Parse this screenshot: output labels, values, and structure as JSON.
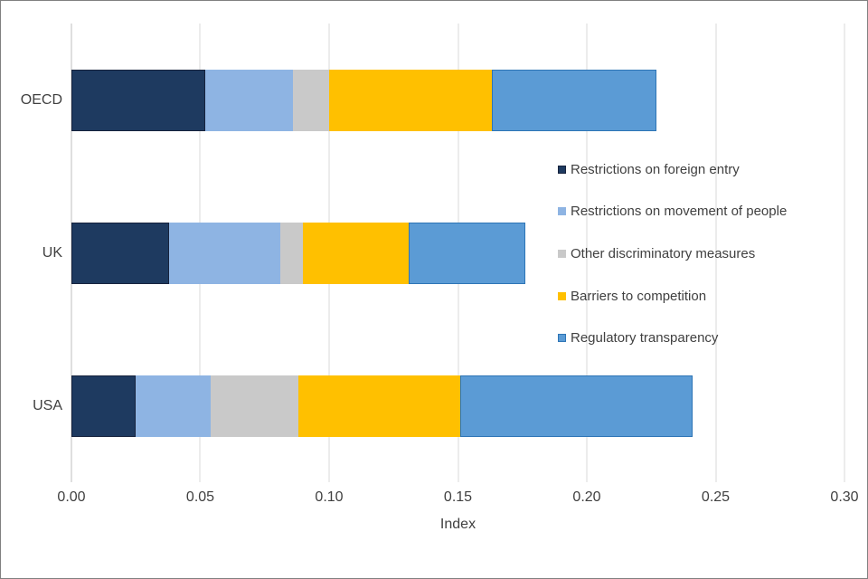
{
  "chart_data": {
    "type": "bar",
    "subtype": "horizontal-stacked",
    "categories": [
      "OECD",
      "UK",
      "USA"
    ],
    "series": [
      {
        "name": "Restrictions on foreign entry",
        "color": "#1E3A60",
        "border_color": "#17233D",
        "values": [
          0.052,
          0.038,
          0.025
        ]
      },
      {
        "name": "Restrictions on movement of people",
        "color": "#8EB4E3",
        "border_color": "",
        "values": [
          0.034,
          0.043,
          0.029
        ]
      },
      {
        "name": "Other discriminatory measures",
        "color": "#C9C9C9",
        "border_color": "",
        "values": [
          0.014,
          0.009,
          0.034
        ]
      },
      {
        "name": "Barriers to competition",
        "color": "#FFC000",
        "border_color": "",
        "values": [
          0.063,
          0.041,
          0.063
        ]
      },
      {
        "name": "Regulatory transparency",
        "color": "#5B9BD5",
        "border_color": "#2E75B6",
        "values": [
          0.064,
          0.045,
          0.09
        ]
      }
    ],
    "title": "",
    "xlabel": "Index",
    "ylabel": "",
    "xlim": [
      0,
      0.3
    ],
    "x_ticks": [
      "0.00",
      "0.05",
      "0.10",
      "0.15",
      "0.20",
      "0.25",
      "0.30"
    ],
    "grid": "vertical-on",
    "legend_position": "overlay-center-right",
    "totals": {
      "OECD": 0.228,
      "UK": 0.176,
      "USA": 0.241
    }
  },
  "canvas": {
    "background": "#FFFFFF",
    "border_color": "#808080",
    "text_color": "#404040",
    "gridline_color": "#D9D9D9",
    "axisline_color": "#BFBFBF"
  }
}
